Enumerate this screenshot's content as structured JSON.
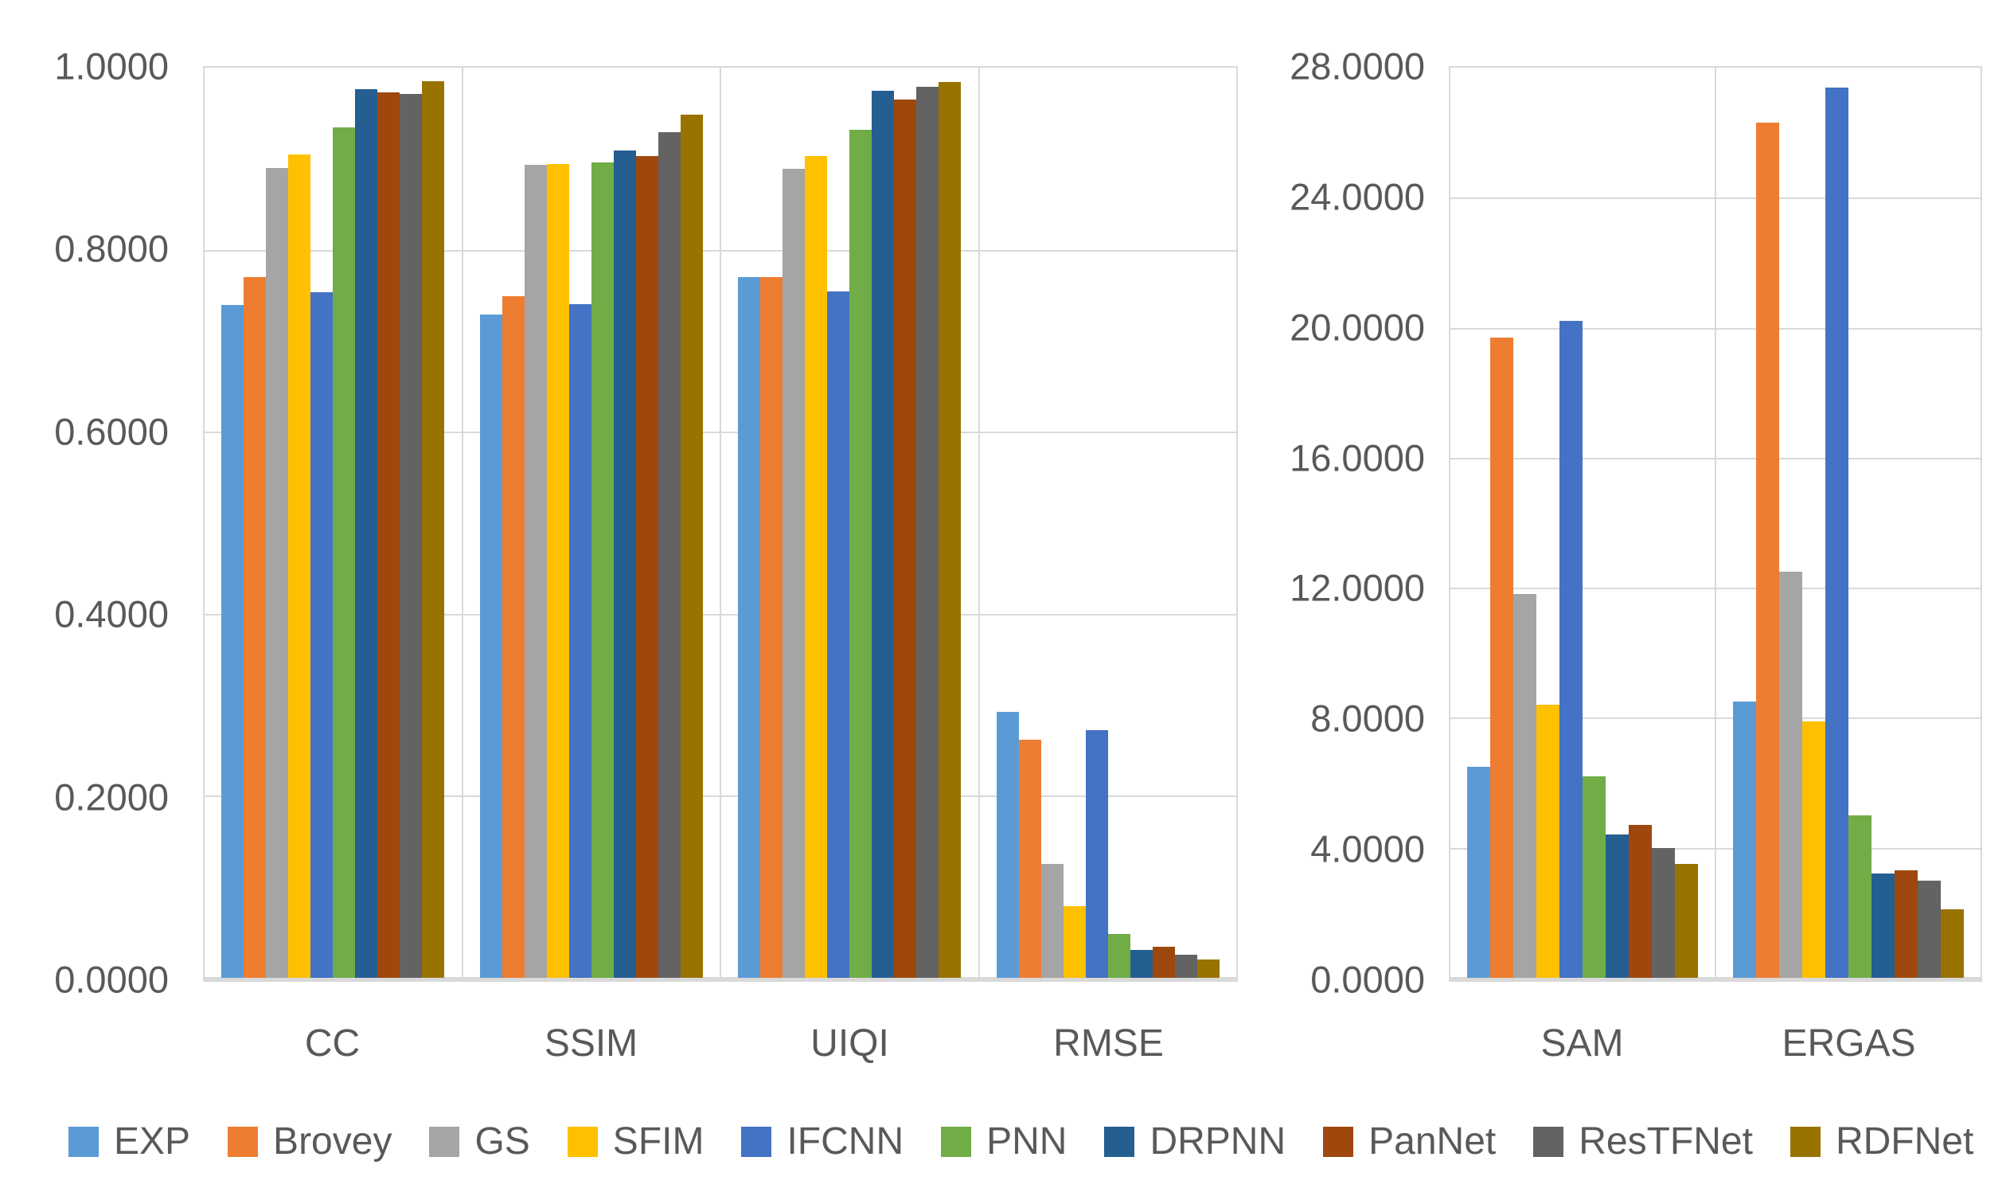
{
  "colors": {
    "background": "#FFFFFF",
    "grid": "#D9D9D9",
    "axis_text": "#595959"
  },
  "legend": {
    "position": "bottom",
    "items": [
      {
        "label": "EXP",
        "color": "#5B9BD5"
      },
      {
        "label": "Brovey",
        "color": "#ED7D31"
      },
      {
        "label": "GS",
        "color": "#A5A5A5"
      },
      {
        "label": "SFIM",
        "color": "#FFC000"
      },
      {
        "label": "IFCNN",
        "color": "#4472C4"
      },
      {
        "label": "PNN",
        "color": "#70AD47"
      },
      {
        "label": "DRPNN",
        "color": "#255E91"
      },
      {
        "label": "PanNet",
        "color": "#9E480E"
      },
      {
        "label": "ResTFNet",
        "color": "#636363"
      },
      {
        "label": "RDFNet",
        "color": "#997300"
      }
    ]
  },
  "chart_data": [
    {
      "type": "bar",
      "panel": "left",
      "title": "",
      "xlabel": "",
      "ylabel": "",
      "grid": true,
      "legend_position": "bottom",
      "categories": [
        "CC",
        "SSIM",
        "UIQI",
        "RMSE"
      ],
      "ylim": [
        0,
        1.0
      ],
      "yticks": [
        {
          "value": 1.0,
          "label": "1.0000"
        },
        {
          "value": 0.8,
          "label": "0.8000"
        },
        {
          "value": 0.6,
          "label": "0.6000"
        },
        {
          "value": 0.4,
          "label": "0.4000"
        },
        {
          "value": 0.2,
          "label": "0.2000"
        },
        {
          "value": 0.0,
          "label": "0.0000"
        }
      ],
      "series": [
        {
          "name": "EXP",
          "color": "#5B9BD5",
          "values": [
            0.739,
            0.729,
            0.77,
            0.292
          ]
        },
        {
          "name": "Brovey",
          "color": "#ED7D31",
          "values": [
            0.77,
            0.749,
            0.77,
            0.262
          ]
        },
        {
          "name": "GS",
          "color": "#A5A5A5",
          "values": [
            0.89,
            0.893,
            0.889,
            0.125
          ]
        },
        {
          "name": "SFIM",
          "color": "#FFC000",
          "values": [
            0.905,
            0.894,
            0.903,
            0.079
          ]
        },
        {
          "name": "IFCNN",
          "color": "#4472C4",
          "values": [
            0.753,
            0.74,
            0.754,
            0.272
          ]
        },
        {
          "name": "PNN",
          "color": "#70AD47",
          "values": [
            0.934,
            0.896,
            0.932,
            0.048
          ]
        },
        {
          "name": "DRPNN",
          "color": "#255E91",
          "values": [
            0.976,
            0.909,
            0.975,
            0.031
          ]
        },
        {
          "name": "PanNet",
          "color": "#9E480E",
          "values": [
            0.973,
            0.903,
            0.965,
            0.034
          ]
        },
        {
          "name": "ResTFNet",
          "color": "#636363",
          "values": [
            0.971,
            0.929,
            0.979,
            0.025
          ]
        },
        {
          "name": "RDFNet",
          "color": "#997300",
          "values": [
            0.985,
            0.948,
            0.984,
            0.02
          ]
        }
      ]
    },
    {
      "type": "bar",
      "panel": "right",
      "title": "",
      "xlabel": "",
      "ylabel": "",
      "grid": true,
      "legend_position": "bottom",
      "categories": [
        "SAM",
        "ERGAS"
      ],
      "ylim": [
        0,
        28.0
      ],
      "yticks": [
        {
          "value": 28.0,
          "label": "28.0000"
        },
        {
          "value": 24.0,
          "label": "24.0000"
        },
        {
          "value": 20.0,
          "label": "20.0000"
        },
        {
          "value": 16.0,
          "label": "16.0000"
        },
        {
          "value": 12.0,
          "label": "12.0000"
        },
        {
          "value": 8.0,
          "label": "8.0000"
        },
        {
          "value": 4.0,
          "label": "4.0000"
        },
        {
          "value": 0.0,
          "label": "0.0000"
        }
      ],
      "series": [
        {
          "name": "EXP",
          "color": "#5B9BD5",
          "values": [
            6.5,
            8.5
          ]
        },
        {
          "name": "Brovey",
          "color": "#ED7D31",
          "values": [
            19.7,
            26.3
          ]
        },
        {
          "name": "GS",
          "color": "#A5A5A5",
          "values": [
            11.8,
            12.5
          ]
        },
        {
          "name": "SFIM",
          "color": "#FFC000",
          "values": [
            8.4,
            7.9
          ]
        },
        {
          "name": "IFCNN",
          "color": "#4472C4",
          "values": [
            20.2,
            27.4
          ]
        },
        {
          "name": "PNN",
          "color": "#70AD47",
          "values": [
            6.2,
            5.0
          ]
        },
        {
          "name": "DRPNN",
          "color": "#255E91",
          "values": [
            4.4,
            3.2
          ]
        },
        {
          "name": "PanNet",
          "color": "#9E480E",
          "values": [
            4.7,
            3.3
          ]
        },
        {
          "name": "ResTFNet",
          "color": "#636363",
          "values": [
            4.0,
            3.0
          ]
        },
        {
          "name": "RDFNet",
          "color": "#997300",
          "values": [
            3.5,
            2.1
          ]
        }
      ]
    }
  ]
}
